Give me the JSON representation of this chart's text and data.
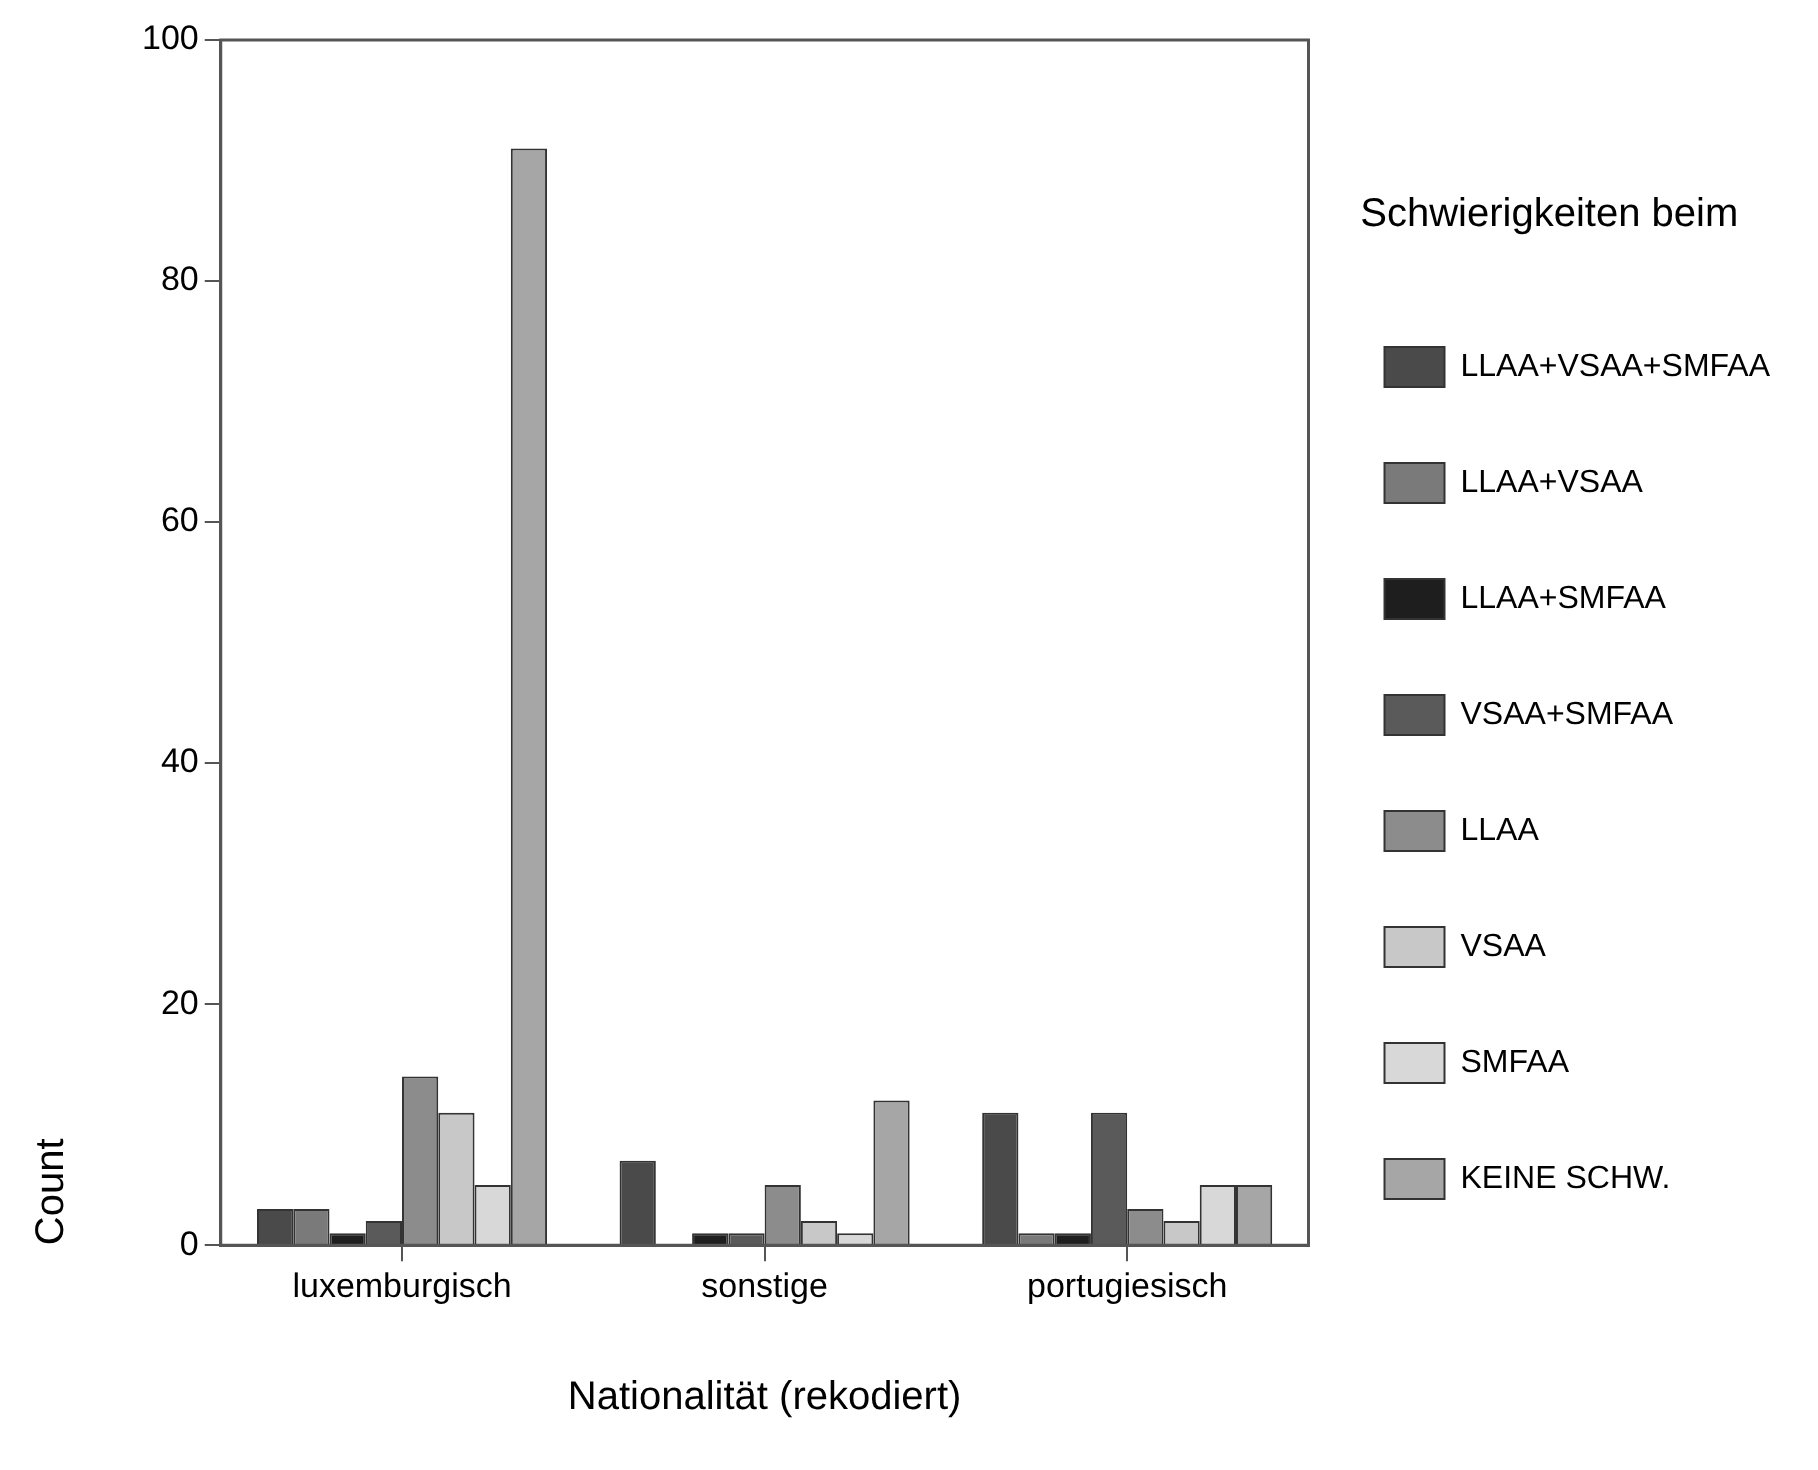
{
  "chart_data": {
    "type": "bar",
    "xlabel": "Nationalität (rekodiert)",
    "ylabel": "Count",
    "legend_title": "Schwierigkeiten beim",
    "categories": [
      "luxemburgisch",
      "sonstige",
      "portugiesisch"
    ],
    "series": [
      {
        "name": "LLAA+VSAA+SMFAA",
        "color": "#4a4a4a",
        "values": [
          3,
          7,
          11
        ]
      },
      {
        "name": "LLAA+VSAA",
        "color": "#7a7a7a",
        "values": [
          3,
          0,
          1
        ]
      },
      {
        "name": "LLAA+SMFAA",
        "color": "#1e1e1e",
        "values": [
          1,
          1,
          1
        ]
      },
      {
        "name": "VSAA+SMFAA",
        "color": "#5a5a5a",
        "values": [
          2,
          1,
          11
        ]
      },
      {
        "name": "LLAA",
        "color": "#8c8c8c",
        "values": [
          14,
          5,
          3
        ]
      },
      {
        "name": "VSAA",
        "color": "#c8c8c8",
        "values": [
          11,
          2,
          2
        ]
      },
      {
        "name": "SMFAA",
        "color": "#d8d8d8",
        "values": [
          5,
          1,
          5
        ]
      },
      {
        "name": "KEINE SCHW.",
        "color": "#a6a6a6",
        "values": [
          91,
          12,
          5
        ]
      }
    ],
    "ylim": [
      0,
      100
    ],
    "yticks": [
      0,
      20,
      40,
      60,
      80,
      100
    ],
    "grid": false,
    "legend": "right"
  }
}
